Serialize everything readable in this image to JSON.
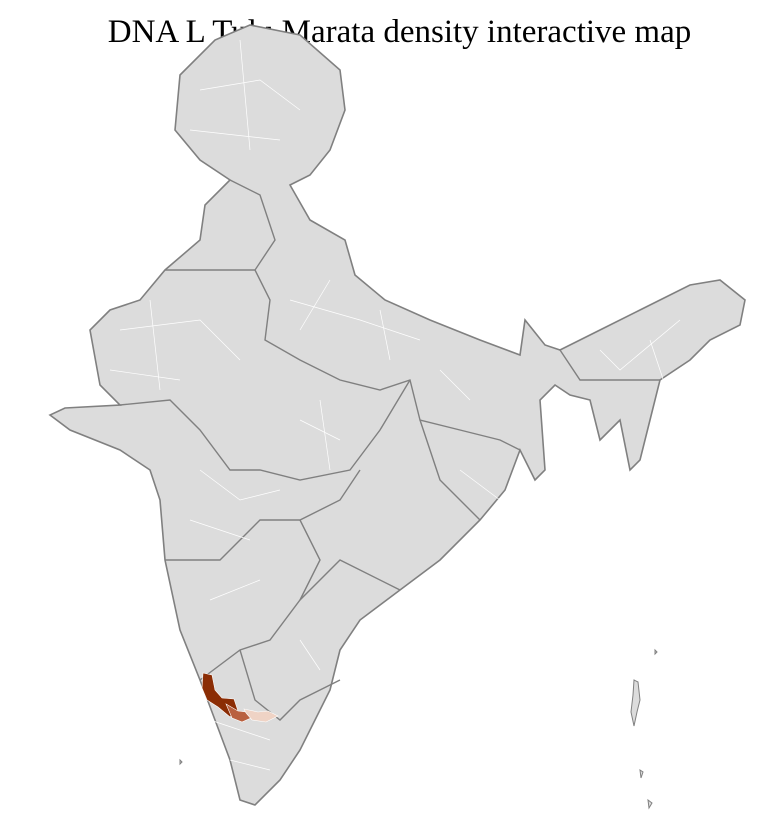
{
  "title": "DNA L Tulu Marata density interactive map",
  "map": {
    "base_fill": "#dcdcdc",
    "border_color": "#808080",
    "district_border_color": "#ffffff",
    "highlighted_regions": [
      {
        "level": "high",
        "color": "#8b2d05"
      },
      {
        "level": "medium",
        "color": "#b9603f"
      },
      {
        "level": "low",
        "color": "#efd3c5"
      }
    ]
  }
}
